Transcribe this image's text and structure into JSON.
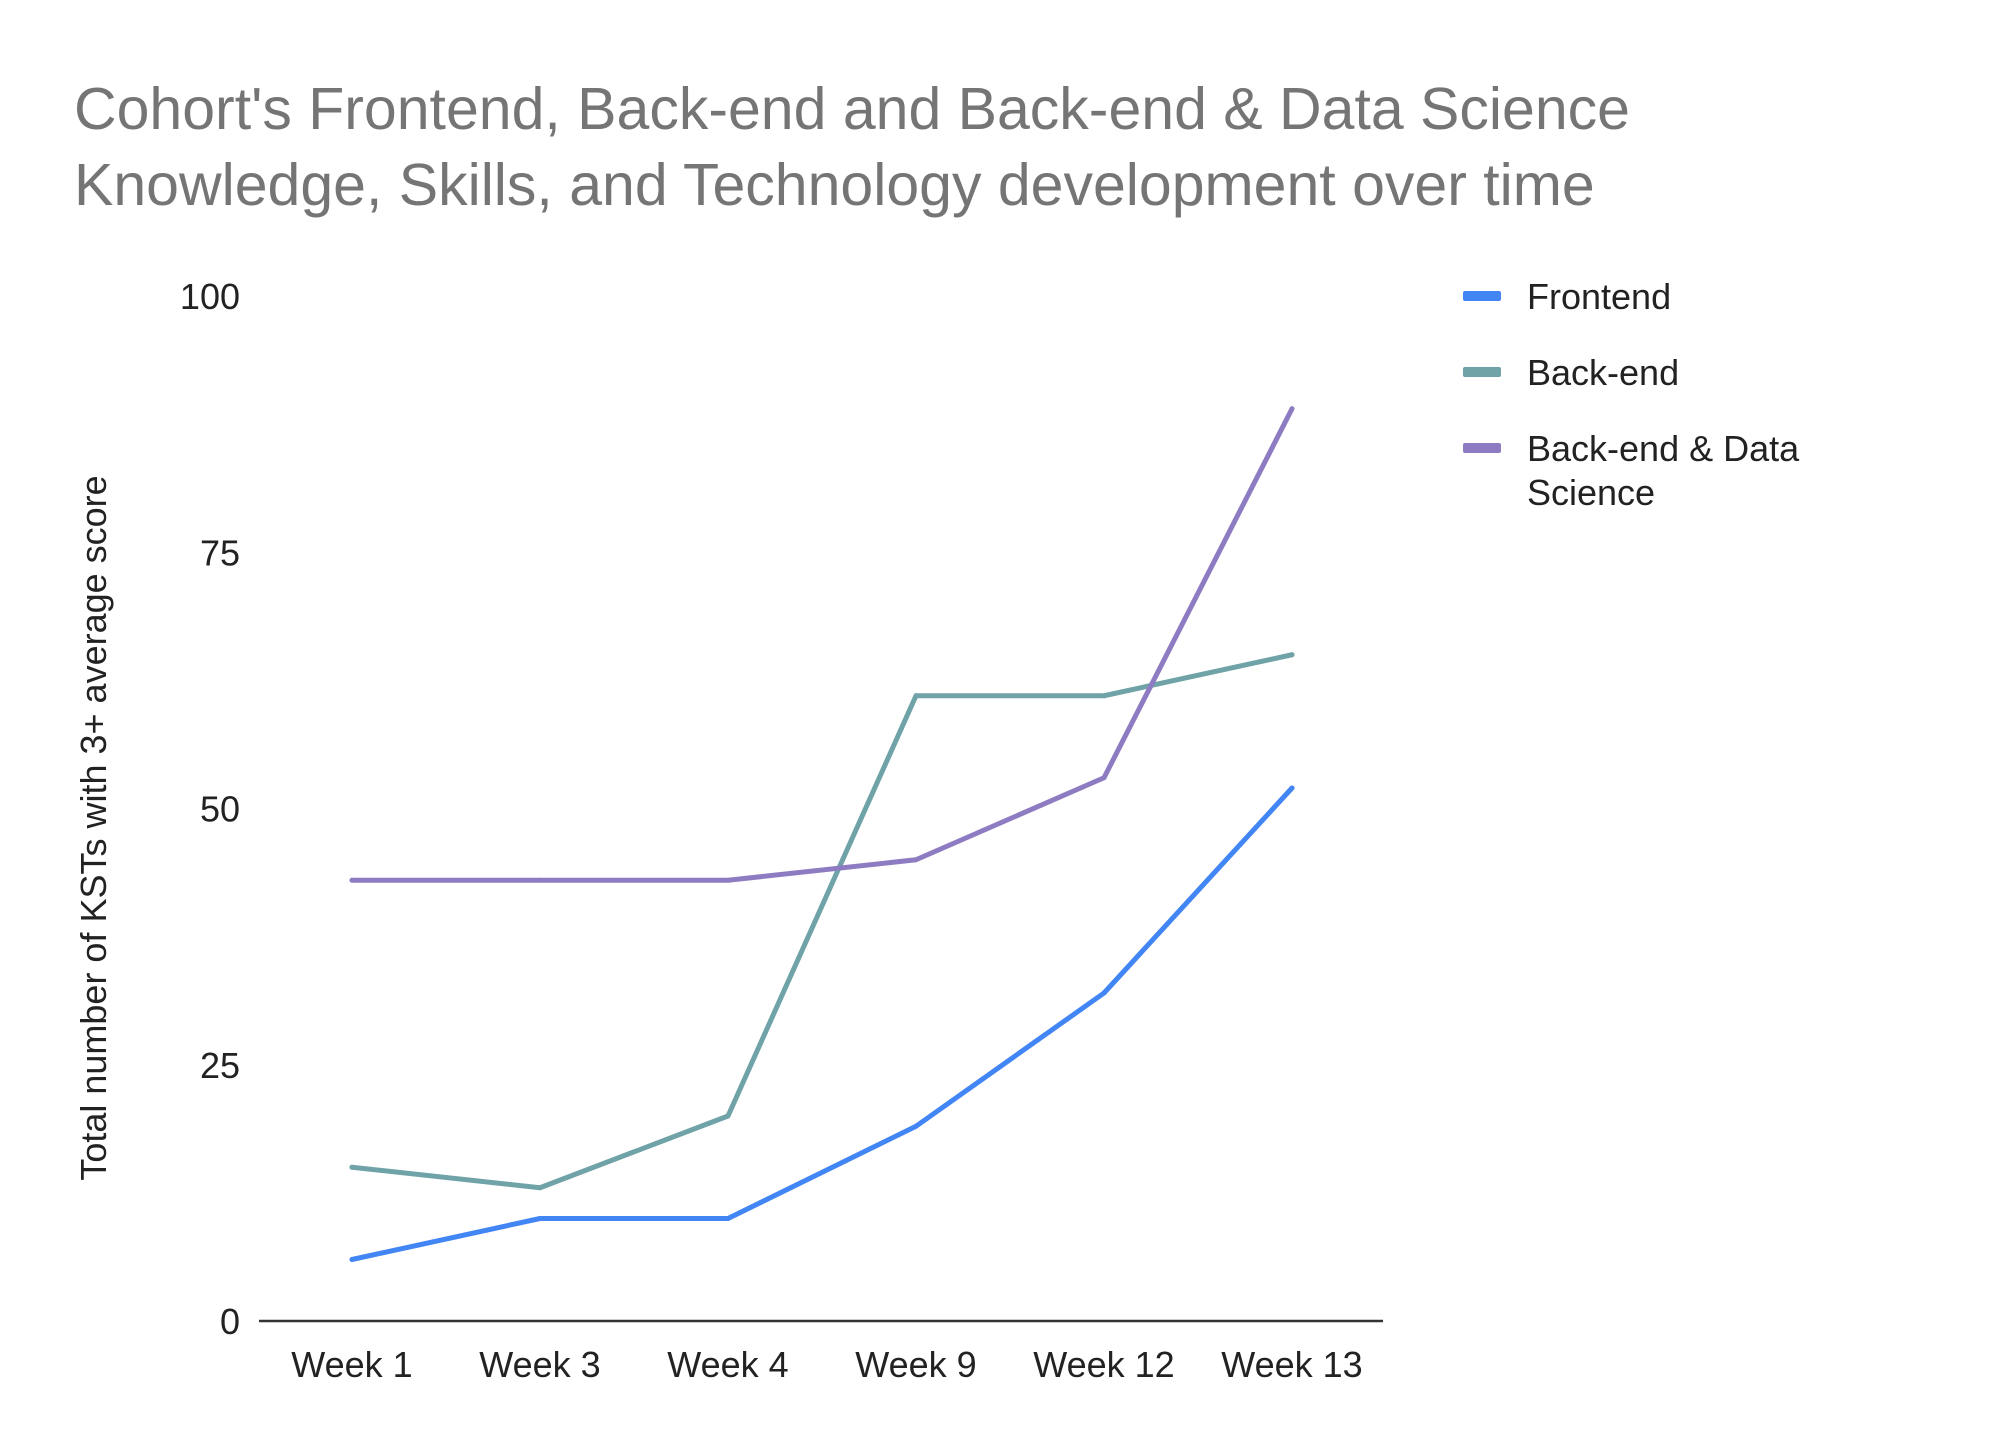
{
  "chart_data": {
    "type": "line",
    "title": "Cohort's Frontend, Back-end and Back-end & Data Science Knowledge, Skills, and Technology development over time",
    "title_lines": [
      "Cohort's Frontend, Back-end and Back-end & Data Science",
      "Knowledge, Skills, and Technology development over time"
    ],
    "xlabel": "",
    "ylabel": "Total number of KSTs with 3+ average score",
    "ylim": [
      0,
      100
    ],
    "yticks": [
      "0",
      "25",
      "50",
      "75",
      "100"
    ],
    "grid": false,
    "legend_position": "right",
    "categories": [
      "Week 1",
      "Week 3",
      "Week 4",
      "Week 9",
      "Week 12",
      "Week 13"
    ],
    "series": [
      {
        "name": "Frontend",
        "color": "#4285f4",
        "legend_lines": [
          "Frontend"
        ],
        "values": [
          6,
          10,
          10,
          19,
          32,
          52
        ]
      },
      {
        "name": "Back-end",
        "color": "#6fa3a8",
        "legend_lines": [
          "Back-end"
        ],
        "values": [
          15,
          13,
          20,
          61,
          61,
          65
        ]
      },
      {
        "name": "Back-end & Data Science",
        "color": "#8e7cc3",
        "legend_lines": [
          "Back-end & Data",
          "Science"
        ],
        "values": [
          43,
          43,
          43,
          45,
          53,
          89
        ]
      }
    ]
  }
}
